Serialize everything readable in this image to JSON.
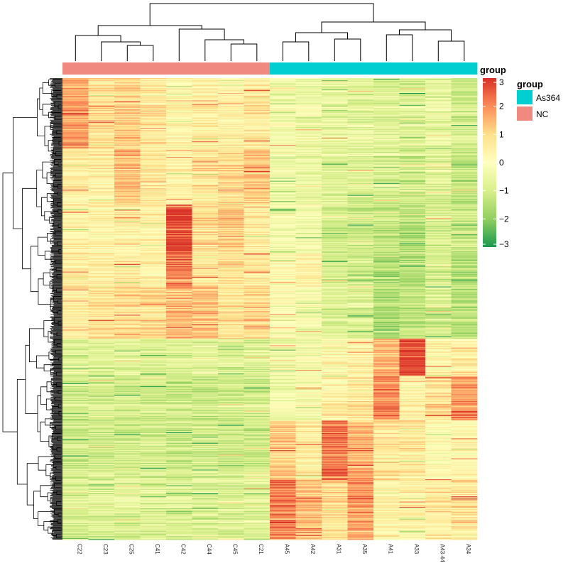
{
  "chart_data": {
    "type": "heatmap",
    "columns": [
      "C22",
      "C23",
      "C25",
      "C41",
      "C42",
      "C44",
      "C45",
      "C21",
      "A45",
      "A42",
      "A31",
      "A35",
      "A41",
      "A33",
      "A43-44",
      "A34"
    ],
    "column_groups": [
      "NC",
      "NC",
      "NC",
      "NC",
      "NC",
      "NC",
      "NC",
      "NC",
      "As364",
      "As364",
      "As364",
      "As364",
      "As364",
      "As364",
      "As364",
      "As364"
    ],
    "row_count": 620,
    "row_clusters": [
      {
        "rows": 95,
        "values": [
          1.7,
          0.8,
          1.1,
          0.7,
          0.3,
          0.5,
          0.4,
          0.6,
          -0.3,
          -0.4,
          -0.6,
          -0.7,
          -0.8,
          -0.9,
          -0.6,
          -1.0
        ]
      },
      {
        "rows": 75,
        "values": [
          0.6,
          0.5,
          1.4,
          0.7,
          0.4,
          0.8,
          1.0,
          1.3,
          -0.3,
          -0.4,
          -0.7,
          -0.8,
          -0.9,
          -1.1,
          -0.8,
          -1.3
        ]
      },
      {
        "rows": 65,
        "values": [
          0.4,
          0.4,
          0.5,
          0.4,
          2.8,
          0.9,
          1.2,
          0.5,
          -0.2,
          -0.3,
          -1.0,
          -1.1,
          -1.3,
          -1.4,
          -0.9,
          -1.1
        ]
      },
      {
        "rows": 45,
        "values": [
          0.5,
          0.5,
          0.5,
          0.4,
          2.0,
          0.7,
          0.8,
          0.6,
          0.0,
          0.4,
          -0.9,
          -1.0,
          -1.4,
          -1.5,
          -0.9,
          -1.6
        ]
      },
      {
        "rows": 70,
        "values": [
          0.5,
          0.8,
          0.9,
          1.0,
          1.5,
          1.2,
          0.8,
          1.0,
          0.1,
          -0.2,
          -0.8,
          -0.9,
          -1.6,
          -1.3,
          -1.0,
          -1.4
        ]
      },
      {
        "rows": 50,
        "values": [
          -0.8,
          -0.8,
          -0.8,
          -0.8,
          -0.8,
          -0.7,
          -0.8,
          -0.8,
          -0.4,
          -0.3,
          0.1,
          0.4,
          1.5,
          2.8,
          0.3,
          0.5
        ]
      },
      {
        "rows": 60,
        "values": [
          -1.0,
          -0.9,
          -1.0,
          -0.9,
          -1.1,
          -1.1,
          -1.0,
          -1.0,
          -0.3,
          -0.1,
          0.5,
          0.7,
          2.0,
          0.4,
          0.9,
          2.0
        ]
      },
      {
        "rows": 80,
        "values": [
          -1.0,
          -1.0,
          -1.0,
          -1.0,
          -1.1,
          -1.0,
          -1.0,
          -1.1,
          1.2,
          0.6,
          2.2,
          1.6,
          0.8,
          0.6,
          0.2,
          0.3
        ]
      },
      {
        "rows": 80,
        "values": [
          -0.8,
          -0.8,
          -0.8,
          -0.8,
          -0.8,
          -0.8,
          -0.8,
          -0.8,
          2.2,
          1.4,
          0.9,
          1.8,
          0.3,
          0.4,
          0.6,
          0.8
        ]
      }
    ],
    "color_scale": {
      "min": -3,
      "max": 3,
      "stops": [
        "#1a9850",
        "#91cf60",
        "#d9ef8b",
        "#ffffbf",
        "#fee08b",
        "#fc8d59",
        "#d73027"
      ],
      "ticks": [
        "3",
        "2",
        "1",
        "0",
        "−1",
        "−2",
        "−3"
      ],
      "tick_values": [
        3,
        2,
        1,
        0,
        -1,
        -2,
        -3
      ]
    },
    "legend": {
      "scale_title": "group",
      "group_title": "group",
      "groups": [
        {
          "name": "As364",
          "color": "#00CED1"
        },
        {
          "name": "NC",
          "color": "#F08A80"
        }
      ]
    }
  }
}
